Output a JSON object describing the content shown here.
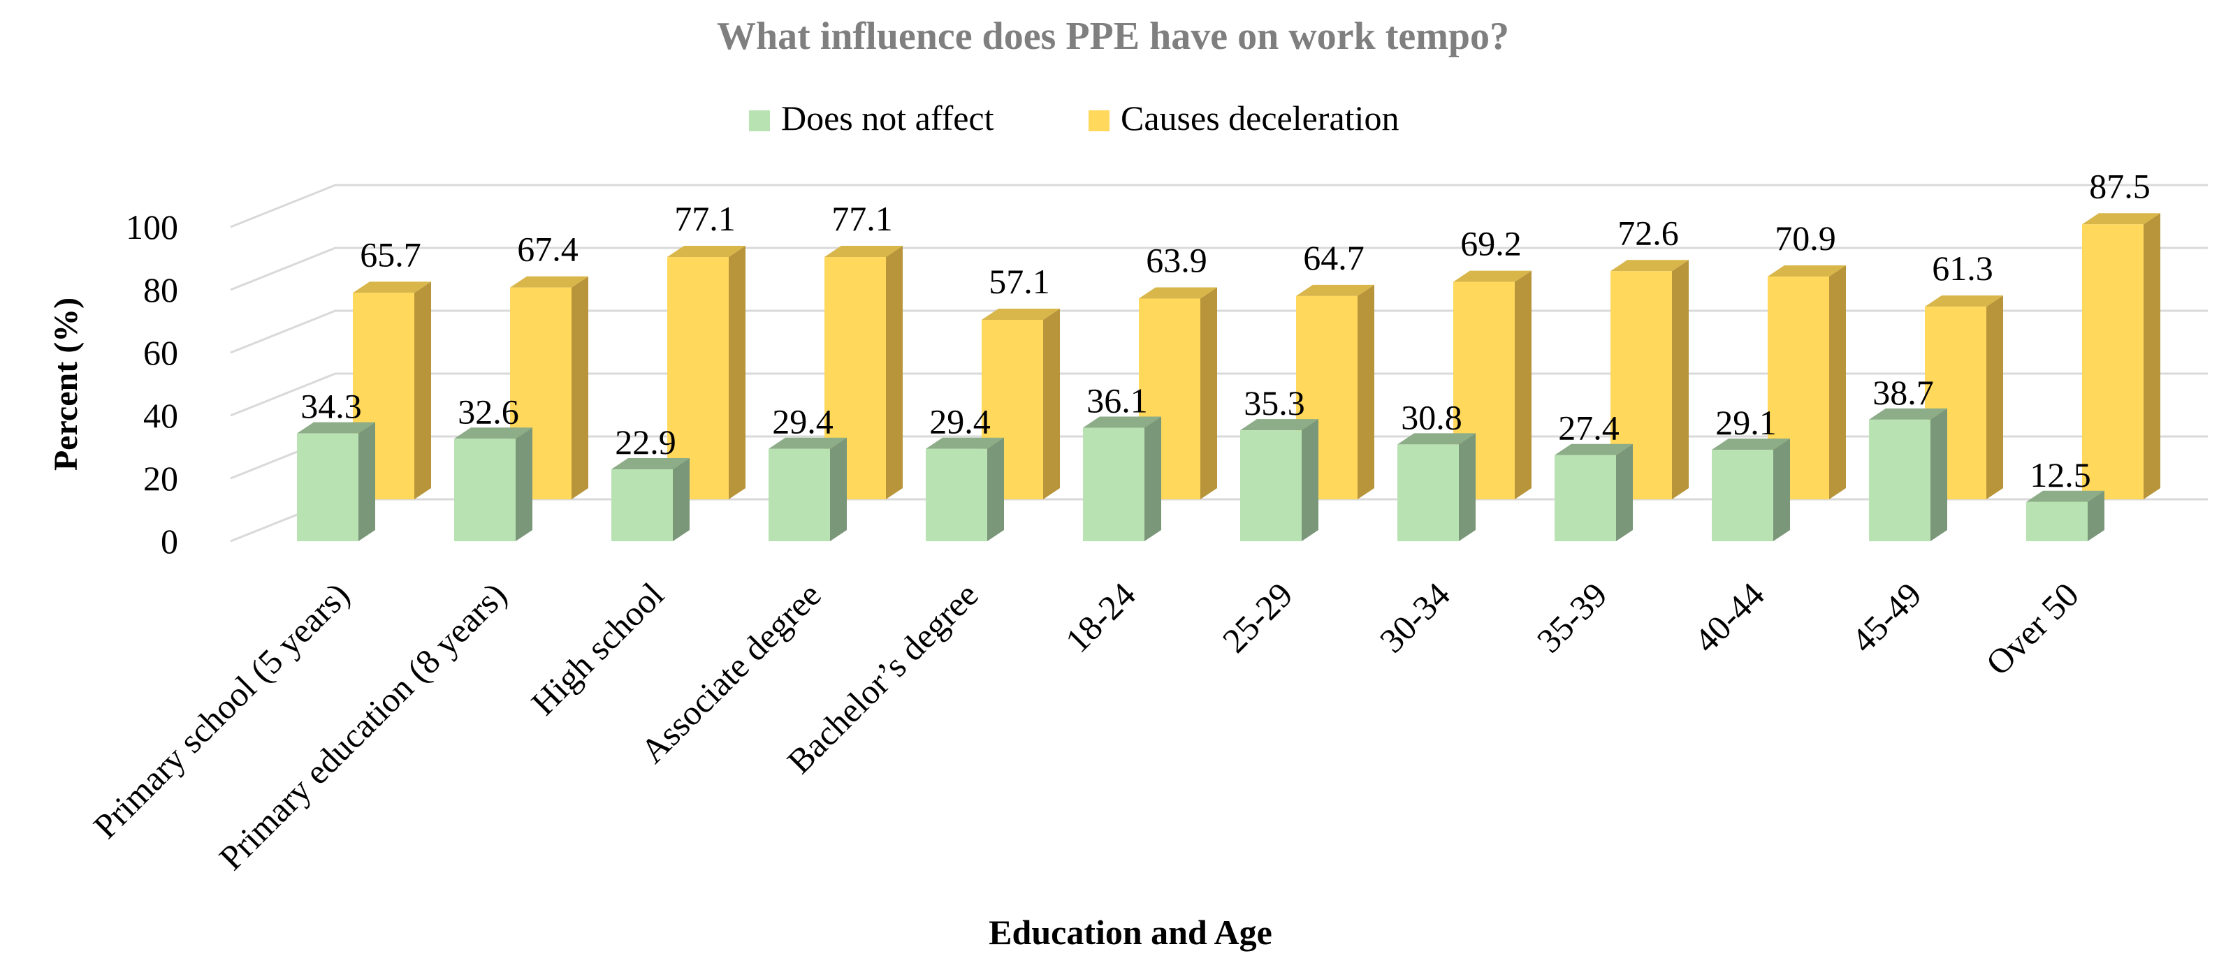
{
  "chart_data": {
    "type": "bar",
    "title": "What influence does PPE have on work tempo?",
    "xlabel": "Education and Age",
    "ylabel": "Percent  (%)",
    "ylim": [
      0,
      100
    ],
    "yticks": [
      0,
      20,
      40,
      60,
      80,
      100
    ],
    "grid": true,
    "legend_position": "top",
    "three_d": true,
    "categories": [
      "Primary school (5 years)",
      "Primary education (8 years)",
      "High school",
      "Associate degree",
      "Bachelor’s degree",
      "18-24",
      "25-29",
      "30-34",
      "35-39",
      "40-44",
      "45-49",
      "Over 50"
    ],
    "series": [
      {
        "name": "Does not affect",
        "color": "#b8e2b2",
        "side_color": "#7a977a",
        "top_color": "#8cad88",
        "values": [
          34.3,
          32.6,
          22.9,
          29.4,
          29.4,
          36.1,
          35.3,
          30.8,
          27.4,
          29.1,
          38.7,
          12.5
        ],
        "labels": [
          "34.3",
          "32.6",
          "22.9",
          "29.4",
          "29.4",
          "36.1",
          "35.3",
          "30.8",
          "27.4",
          "29.1",
          "38.7",
          "12.5"
        ]
      },
      {
        "name": "Causes deceleration",
        "color": "#ffd85c",
        "side_color": "#b8953a",
        "top_color": "#d9b64a",
        "values": [
          65.7,
          67.4,
          77.1,
          77.1,
          57.1,
          63.9,
          64.7,
          69.2,
          72.6,
          70.9,
          61.3,
          87.5
        ],
        "labels": [
          "65.7",
          "67.4",
          "77.1",
          "77.1",
          "57.1",
          "63.9",
          "64.7",
          "69.2",
          "72.6",
          "70.9",
          "61.3",
          "87.5"
        ]
      }
    ]
  }
}
